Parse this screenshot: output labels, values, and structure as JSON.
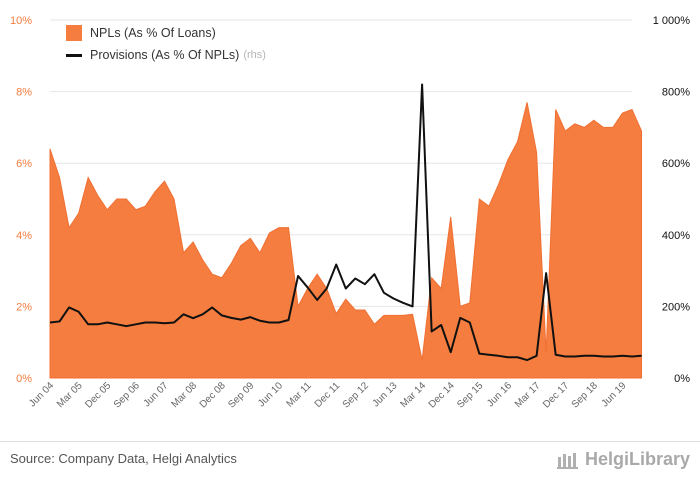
{
  "chart_data": {
    "type": "area+line",
    "legend": {
      "placement": "top-left",
      "npl_label": "NPLs (As % Of Loans)",
      "prov_label": "Provisions (As % Of NPLs)",
      "prov_suffix": "(rhs)"
    },
    "x_tick_labels": [
      "Jun 04",
      "Mar 05",
      "Dec 05",
      "Sep 06",
      "Jun 07",
      "Mar 08",
      "Dec 08",
      "Sep 09",
      "Jun 10",
      "Mar 11",
      "Dec 11",
      "Sep 12",
      "Jun 13",
      "Mar 14",
      "Dec 14",
      "Sep 15",
      "Jun 16",
      "Mar 17",
      "Dec 17",
      "Sep 18",
      "Jun 19"
    ],
    "left_axis": {
      "ticks": [
        "0%",
        "2%",
        "4%",
        "6%",
        "8%",
        "10%"
      ],
      "min": 0,
      "max": 10,
      "color": "#f47d3f"
    },
    "right_axis": {
      "ticks": [
        "0%",
        "200%",
        "400%",
        "600%",
        "800%",
        "1 000%"
      ],
      "min": 0,
      "max": 1000
    },
    "x_range": [
      0,
      61
    ],
    "series": [
      {
        "name": "NPLs (As % Of Loans)",
        "type": "area",
        "axis": "left",
        "color": "#f47d3f",
        "values": [
          6.4,
          5.6,
          4.2,
          4.6,
          5.6,
          5.1,
          4.7,
          5.0,
          5.0,
          4.7,
          4.8,
          5.2,
          5.5,
          5.0,
          3.5,
          3.8,
          3.3,
          2.9,
          2.8,
          3.2,
          3.7,
          3.9,
          3.5,
          4.05,
          4.2,
          4.2,
          2.0,
          2.5,
          2.9,
          2.5,
          1.8,
          2.2,
          1.9,
          1.9,
          1.5,
          1.75,
          1.75,
          1.75,
          1.78,
          0.5,
          2.8,
          2.5,
          4.5,
          2.0,
          2.1,
          5.0,
          4.8,
          5.4,
          6.1,
          6.6,
          7.7,
          6.3,
          0.7,
          7.5,
          6.9,
          7.1,
          7.0,
          7.2,
          7.0,
          7.0,
          7.4,
          7.5,
          6.9
        ]
      },
      {
        "name": "Provisions (As % Of NPLs)",
        "type": "line",
        "axis": "right",
        "color": "#111111",
        "values": [
          155,
          158,
          197,
          185,
          150,
          150,
          155,
          150,
          145,
          150,
          155,
          155,
          153,
          155,
          178,
          167,
          178,
          197,
          175,
          168,
          163,
          170,
          160,
          155,
          155,
          162,
          285,
          253,
          218,
          250,
          317,
          250,
          278,
          262,
          290,
          238,
          222,
          210,
          200,
          820,
          130,
          148,
          72,
          168,
          155,
          68,
          65,
          62,
          58,
          58,
          50,
          62,
          293,
          65,
          60,
          60,
          62,
          62,
          60,
          60,
          62,
          60,
          62
        ]
      }
    ]
  },
  "footer": {
    "source": "Source: Company Data, Helgi Analytics",
    "brand": "HelgiLibrary"
  },
  "colors": {
    "npl_area": "#f47d3f",
    "prov_line": "#111111",
    "grid": "#e6e6e6"
  }
}
